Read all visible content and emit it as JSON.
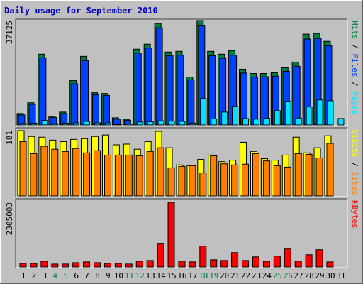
{
  "title": "Daily usage for September 2010",
  "legend_separator": "/",
  "weekend_days": [
    4,
    5,
    11,
    12,
    18,
    19,
    25,
    26
  ],
  "weekend_color": "#008040",
  "chart_data": [
    {
      "type": "bar",
      "categories": [
        1,
        2,
        3,
        4,
        5,
        6,
        7,
        8,
        9,
        10,
        11,
        12,
        13,
        14,
        15,
        16,
        17,
        18,
        19,
        20,
        21,
        22,
        23,
        24,
        25,
        26,
        27,
        28,
        29,
        30,
        31
      ],
      "ylim": [
        0,
        37125
      ],
      "yticks": [
        37125
      ],
      "series": [
        {
          "name": "Hits",
          "color": "#008040",
          "values": [
            4293,
            8082,
            25255,
            3283,
            4798,
            15911,
            24497,
            11617,
            11365,
            2778,
            2273,
            27023,
            28791,
            36115,
            26013,
            26265,
            17173,
            37125,
            26265,
            25255,
            26518,
            19951,
            18436,
            18436,
            18689,
            20457,
            22477,
            32326,
            32579,
            29801,
            0
          ]
        },
        {
          "name": "Files",
          "color": "#0040ff",
          "values": [
            3800,
            7500,
            24000,
            2900,
            4300,
            14800,
            23000,
            10900,
            10700,
            2300,
            1900,
            25600,
            27400,
            34600,
            24700,
            24900,
            16200,
            35500,
            24700,
            23800,
            24900,
            18600,
            17200,
            17300,
            17500,
            19200,
            21000,
            30600,
            30800,
            28200,
            0
          ]
        },
        {
          "name": "Pages",
          "color": "#00e0ff",
          "values": [
            800,
            900,
            1800,
            700,
            900,
            1000,
            1500,
            1000,
            1000,
            500,
            600,
            1300,
            1400,
            1700,
            1600,
            1500,
            900,
            9600,
            2400,
            4800,
            6800,
            2500,
            2300,
            2600,
            5300,
            8600,
            2700,
            6600,
            9100,
            8800,
            2525
          ]
        }
      ]
    },
    {
      "type": "bar",
      "categories": [
        1,
        2,
        3,
        4,
        5,
        6,
        7,
        8,
        9,
        10,
        11,
        12,
        13,
        14,
        15,
        16,
        17,
        18,
        19,
        20,
        21,
        22,
        23,
        24,
        25,
        26,
        27,
        28,
        29,
        30,
        31
      ],
      "ylim": [
        0,
        181
      ],
      "yticks": [
        181
      ],
      "series": [
        {
          "name": "Visits",
          "color": "#ffff00",
          "values": [
            181,
            165,
            163,
            155,
            151,
            157,
            159,
            165,
            169,
            142,
            144,
            130,
            151,
            179,
            134,
            87,
            85,
            102,
            114,
            96,
            100,
            149,
            124,
            104,
            100,
            114,
            163,
            120,
            134,
            167,
            0
          ]
        },
        {
          "name": "Sites",
          "color": "#ff8000",
          "values": [
            151,
            118,
            138,
            130,
            124,
            132,
            120,
            126,
            114,
            114,
            114,
            112,
            124,
            134,
            79,
            83,
            85,
            65,
            112,
            90,
            87,
            89,
            118,
            98,
            85,
            81,
            118,
            116,
            106,
            146,
            0
          ]
        }
      ]
    },
    {
      "type": "bar",
      "categories": [
        1,
        2,
        3,
        4,
        5,
        6,
        7,
        8,
        9,
        10,
        11,
        12,
        13,
        14,
        15,
        16,
        17,
        18,
        19,
        20,
        21,
        22,
        23,
        24,
        25,
        26,
        27,
        28,
        29,
        30,
        31
      ],
      "ylim": [
        0,
        2305003
      ],
      "yticks": [
        2305003
      ],
      "series": [
        {
          "name": "KBytes",
          "color": "#ff0000",
          "values": [
            152000,
            152000,
            228000,
            127000,
            127000,
            177000,
            203000,
            177000,
            152000,
            152000,
            127000,
            228000,
            253000,
            861000,
            2305003,
            228000,
            203000,
            760000,
            279000,
            253000,
            532000,
            253000,
            380000,
            228000,
            405000,
            684000,
            228000,
            456000,
            633000,
            203000,
            0
          ]
        }
      ]
    }
  ]
}
